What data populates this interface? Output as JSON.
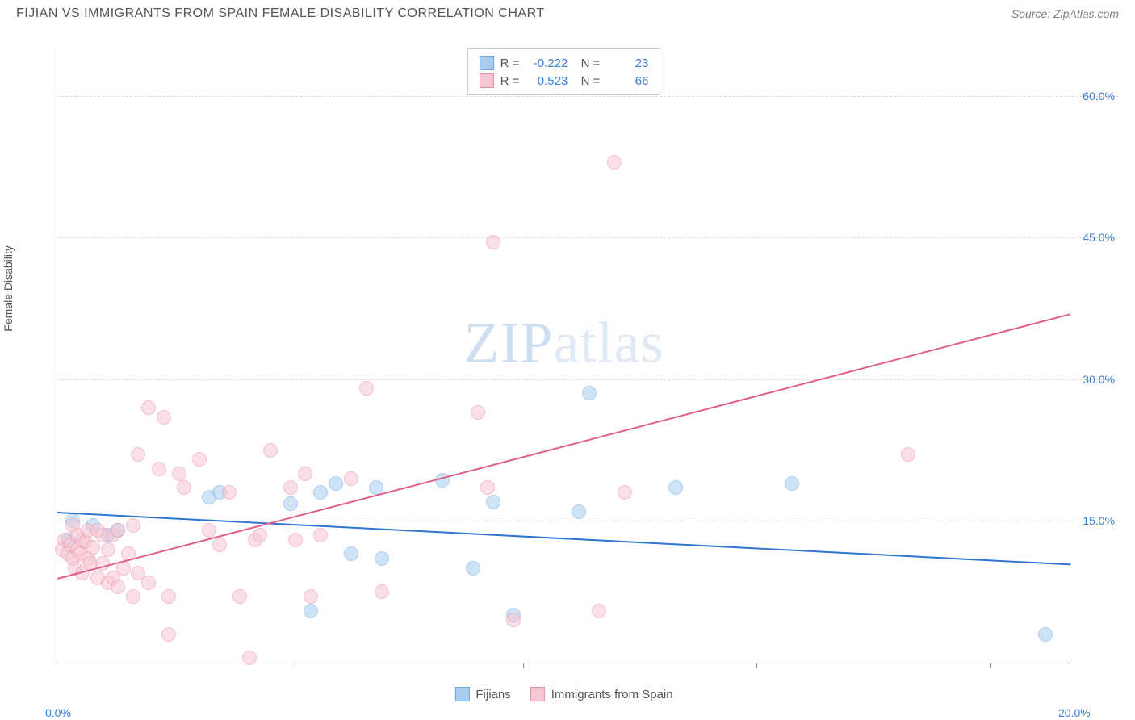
{
  "title": "FIJIAN VS IMMIGRANTS FROM SPAIN FEMALE DISABILITY CORRELATION CHART",
  "source": "Source: ZipAtlas.com",
  "ylabel": "Female Disability",
  "watermark_a": "ZIP",
  "watermark_b": "atlas",
  "chart": {
    "type": "scatter",
    "xlim": [
      0,
      20
    ],
    "ylim": [
      0,
      65
    ],
    "x_ticks": [
      0,
      20
    ],
    "x_tick_labels": [
      "0.0%",
      "20.0%"
    ],
    "x_minor_ticks": [
      4.6,
      9.2,
      13.8,
      18.4
    ],
    "y_ticks": [
      15,
      30,
      45,
      60
    ],
    "y_tick_labels": [
      "15.0%",
      "30.0%",
      "45.0%",
      "60.0%"
    ],
    "grid_color": "#dddddd",
    "axis_color": "#888888",
    "label_color": "#3b7dd8",
    "text_color": "#555555",
    "background": "#ffffff",
    "title_fontsize": 16,
    "label_fontsize": 14,
    "point_radius": 9,
    "point_opacity": 0.55,
    "series": [
      {
        "name": "Fijians",
        "color_fill": "#a8cdf0",
        "color_stroke": "#6fa8e0",
        "R": "-0.222",
        "N": "23",
        "trend": {
          "x1": 0,
          "y1": 16.0,
          "x2": 20,
          "y2": 10.5,
          "color": "#2f74d0",
          "width": 2
        },
        "points": [
          [
            0.2,
            13.0
          ],
          [
            0.3,
            15.0
          ],
          [
            0.7,
            14.5
          ],
          [
            1.0,
            13.5
          ],
          [
            1.2,
            14.0
          ],
          [
            3.0,
            17.5
          ],
          [
            3.2,
            18.0
          ],
          [
            4.6,
            16.8
          ],
          [
            5.2,
            18.0
          ],
          [
            5.5,
            19.0
          ],
          [
            5.8,
            11.5
          ],
          [
            6.3,
            18.5
          ],
          [
            6.4,
            11.0
          ],
          [
            7.6,
            19.3
          ],
          [
            8.2,
            10.0
          ],
          [
            8.6,
            17.0
          ],
          [
            9.0,
            5.0
          ],
          [
            10.3,
            16.0
          ],
          [
            10.5,
            28.5
          ],
          [
            12.2,
            18.5
          ],
          [
            14.5,
            19.0
          ],
          [
            19.5,
            3.0
          ],
          [
            5.0,
            5.5
          ]
        ]
      },
      {
        "name": "Immigrants from Spain",
        "color_fill": "#f7c6d2",
        "color_stroke": "#e88fa8",
        "R": "0.523",
        "N": "66",
        "trend": {
          "x1": 0,
          "y1": 9.0,
          "x2": 20,
          "y2": 37.0,
          "color": "#e16088",
          "width": 2
        },
        "points": [
          [
            0.1,
            12.0
          ],
          [
            0.15,
            13.0
          ],
          [
            0.2,
            11.5
          ],
          [
            0.25,
            12.5
          ],
          [
            0.3,
            11.0
          ],
          [
            0.3,
            14.5
          ],
          [
            0.35,
            10.0
          ],
          [
            0.4,
            13.5
          ],
          [
            0.4,
            12.0
          ],
          [
            0.45,
            11.5
          ],
          [
            0.5,
            9.5
          ],
          [
            0.5,
            13.0
          ],
          [
            0.55,
            12.8
          ],
          [
            0.6,
            11.0
          ],
          [
            0.6,
            14.0
          ],
          [
            0.65,
            10.5
          ],
          [
            0.7,
            12.2
          ],
          [
            0.8,
            9.0
          ],
          [
            0.8,
            14.0
          ],
          [
            0.9,
            13.5
          ],
          [
            0.9,
            10.5
          ],
          [
            1.0,
            8.5
          ],
          [
            1.0,
            12.0
          ],
          [
            1.1,
            9.0
          ],
          [
            1.1,
            13.5
          ],
          [
            1.2,
            14.0
          ],
          [
            1.2,
            8.0
          ],
          [
            1.3,
            10.0
          ],
          [
            1.4,
            11.5
          ],
          [
            1.5,
            7.0
          ],
          [
            1.5,
            14.5
          ],
          [
            1.6,
            9.5
          ],
          [
            1.6,
            22.0
          ],
          [
            1.8,
            27.0
          ],
          [
            1.8,
            8.5
          ],
          [
            2.0,
            20.5
          ],
          [
            2.1,
            26.0
          ],
          [
            2.2,
            7.0
          ],
          [
            2.2,
            3.0
          ],
          [
            2.4,
            20.0
          ],
          [
            2.5,
            18.5
          ],
          [
            2.8,
            21.5
          ],
          [
            3.0,
            14.0
          ],
          [
            3.2,
            12.5
          ],
          [
            3.4,
            18.0
          ],
          [
            3.6,
            7.0
          ],
          [
            3.8,
            0.5
          ],
          [
            3.9,
            13.0
          ],
          [
            4.0,
            13.5
          ],
          [
            4.2,
            22.5
          ],
          [
            4.6,
            18.5
          ],
          [
            4.7,
            13.0
          ],
          [
            4.9,
            20.0
          ],
          [
            5.0,
            7.0
          ],
          [
            5.2,
            13.5
          ],
          [
            5.8,
            19.5
          ],
          [
            6.1,
            29.0
          ],
          [
            6.4,
            7.5
          ],
          [
            8.3,
            26.5
          ],
          [
            8.5,
            18.5
          ],
          [
            8.6,
            44.5
          ],
          [
            9.0,
            4.5
          ],
          [
            10.7,
            5.5
          ],
          [
            11.0,
            53.0
          ],
          [
            11.2,
            18.0
          ],
          [
            16.8,
            22.0
          ]
        ]
      }
    ]
  },
  "legend_labels": [
    "Fijians",
    "Immigrants from Spain"
  ]
}
